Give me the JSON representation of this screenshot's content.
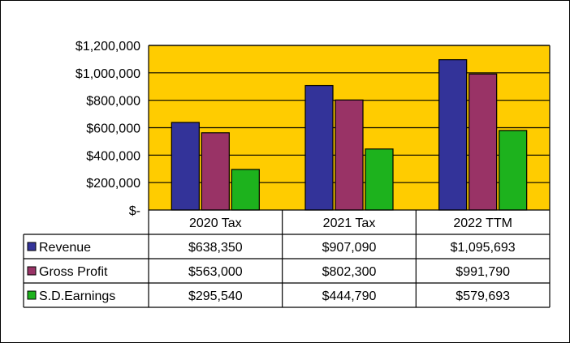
{
  "chart_data": {
    "type": "bar",
    "categories": [
      "2020 Tax",
      "2021 Tax",
      "2022 TTM"
    ],
    "series": [
      {
        "name": "Revenue",
        "values": [
          638350,
          907090,
          1095693
        ],
        "labels": [
          "$638,350",
          "$907,090",
          "$1,095,693"
        ],
        "color": "#333399"
      },
      {
        "name": "Gross Profit",
        "values": [
          563000,
          802300,
          991790
        ],
        "labels": [
          "$563,000",
          "$802,300",
          "$991,790"
        ],
        "color": "#993366"
      },
      {
        "name": "S.D.Earnings",
        "values": [
          295540,
          444790,
          579693
        ],
        "labels": [
          "$295,540",
          "$444,790",
          "$579,693"
        ],
        "color": "#1DB21D"
      }
    ],
    "ylim": [
      0,
      1200000
    ],
    "yticks": [
      0,
      200000,
      400000,
      600000,
      800000,
      1000000,
      1200000
    ],
    "ytick_labels": [
      "$-",
      "$200,000",
      "$400,000",
      "$600,000",
      "$800,000",
      "$1,000,000",
      "$1,200,000"
    ],
    "plot_background": "#FFCC00",
    "grid": true,
    "legend": "data-table"
  }
}
